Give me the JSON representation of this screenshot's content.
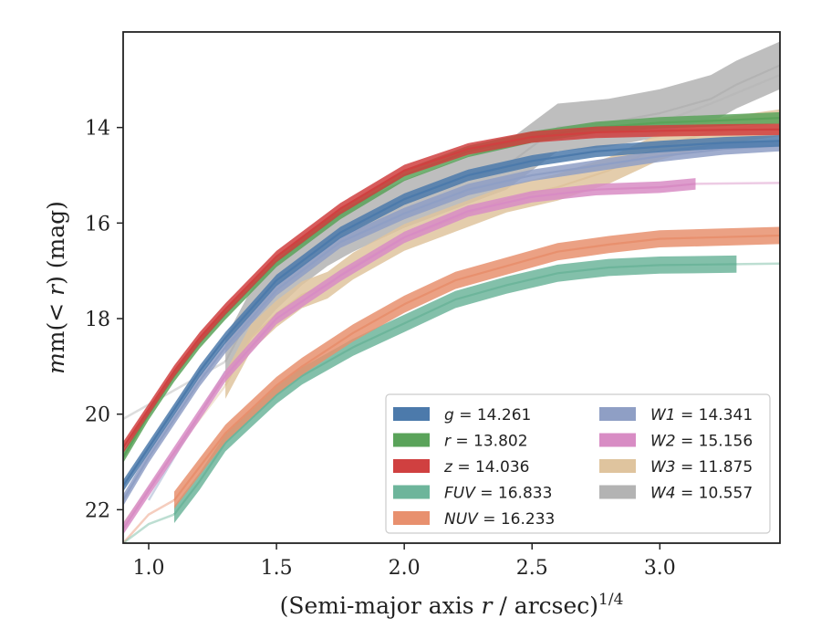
{
  "chart_data": {
    "type": "line",
    "xlabel_main": "(Semi-major axis ",
    "xlabel_var": "r",
    "xlabel_tail": " / arcsec)",
    "xlabel_sup": "1/4",
    "ylabel_pre": "m(< ",
    "ylabel_var": "r",
    "ylabel_post": ") (mag)",
    "xlim": [
      0.9,
      3.47
    ],
    "ylim": [
      22.7,
      12.0
    ],
    "y_inverted": true,
    "grid": false,
    "legend_position": "lower-right",
    "xticks": [
      {
        "value": 1.0,
        "label": "1.0"
      },
      {
        "value": 1.5,
        "label": "1.5"
      },
      {
        "value": 2.0,
        "label": "2.0"
      },
      {
        "value": 2.5,
        "label": "2.5"
      },
      {
        "value": 3.0,
        "label": "3.0"
      }
    ],
    "yticks": [
      {
        "value": 14,
        "label": "14"
      },
      {
        "value": 16,
        "label": "16"
      },
      {
        "value": 18,
        "label": "18"
      },
      {
        "value": 20,
        "label": "20"
      },
      {
        "value": 22,
        "label": "22"
      }
    ],
    "series": [
      {
        "name": "g",
        "value_label": "14.261",
        "color": "#4c7aab",
        "band": 0.12,
        "x": [
          0.9,
          1.0,
          1.1,
          1.2,
          1.3,
          1.5,
          1.75,
          2.0,
          2.25,
          2.5,
          2.75,
          3.0,
          3.25,
          3.47
        ],
        "y": [
          21.5,
          20.7,
          19.9,
          19.1,
          18.4,
          17.2,
          16.2,
          15.5,
          15.0,
          14.7,
          14.5,
          14.4,
          14.32,
          14.28
        ]
      },
      {
        "name": "r",
        "value_label": "13.802",
        "color": "#5aa35a",
        "band": 0.12,
        "x": [
          0.9,
          1.0,
          1.1,
          1.2,
          1.3,
          1.5,
          1.75,
          2.0,
          2.25,
          2.5,
          2.75,
          3.0,
          3.25,
          3.47
        ],
        "y": [
          20.9,
          20.0,
          19.2,
          18.5,
          17.9,
          16.8,
          15.8,
          15.0,
          14.5,
          14.2,
          14.0,
          13.9,
          13.85,
          13.8
        ]
      },
      {
        "name": "z",
        "value_label": "14.036",
        "color": "#d04040",
        "band": 0.12,
        "x": [
          0.9,
          1.0,
          1.1,
          1.2,
          1.3,
          1.5,
          1.75,
          2.0,
          2.25,
          2.5,
          2.75,
          3.0,
          3.25,
          3.47
        ],
        "y": [
          20.7,
          19.9,
          19.1,
          18.4,
          17.8,
          16.7,
          15.7,
          14.9,
          14.45,
          14.2,
          14.1,
          14.07,
          14.05,
          14.04
        ]
      },
      {
        "name": "FUV",
        "value_label": "16.833",
        "color": "#6db59b",
        "band": 0.18,
        "x": [
          1.1,
          1.2,
          1.3,
          1.4,
          1.5,
          1.6,
          1.8,
          2.0,
          2.2,
          2.4,
          2.6,
          2.8,
          3.0,
          3.3
        ],
        "y": [
          22.1,
          21.4,
          20.6,
          20.1,
          19.6,
          19.2,
          18.6,
          18.1,
          17.6,
          17.3,
          17.05,
          16.93,
          16.88,
          16.86
        ]
      },
      {
        "name": "NUV",
        "value_label": "16.233",
        "color": "#e8906e",
        "band": 0.18,
        "x": [
          1.1,
          1.2,
          1.3,
          1.4,
          1.5,
          1.6,
          1.8,
          2.0,
          2.2,
          2.4,
          2.6,
          2.8,
          3.0,
          3.47
        ],
        "y": [
          21.8,
          21.1,
          20.4,
          19.9,
          19.4,
          19.0,
          18.3,
          17.7,
          17.2,
          16.9,
          16.6,
          16.45,
          16.33,
          16.26
        ]
      },
      {
        "name": "W1",
        "value_label": "14.341",
        "color": "#8f9fc5",
        "band": 0.12,
        "x": [
          0.9,
          1.0,
          1.1,
          1.2,
          1.3,
          1.5,
          1.75,
          2.0,
          2.25,
          2.5,
          2.75,
          3.0,
          3.25,
          3.47
        ],
        "y": [
          21.8,
          20.9,
          20.1,
          19.3,
          18.6,
          17.4,
          16.4,
          15.8,
          15.3,
          15.0,
          14.8,
          14.6,
          14.45,
          14.38
        ]
      },
      {
        "name": "W2",
        "value_label": "15.156",
        "color": "#d88cc4",
        "band": 0.12,
        "x": [
          0.9,
          1.0,
          1.1,
          1.2,
          1.3,
          1.5,
          1.75,
          2.0,
          2.25,
          2.5,
          2.75,
          3.0,
          3.14
        ],
        "y": [
          22.4,
          21.6,
          20.8,
          20.0,
          19.2,
          18.0,
          17.1,
          16.3,
          15.75,
          15.45,
          15.3,
          15.25,
          15.18
        ]
      },
      {
        "name": "W3",
        "value_label": "11.875",
        "color": "#dfc49e",
        "band": 0.28,
        "x": [
          1.3,
          1.4,
          1.5,
          1.6,
          1.7,
          1.8,
          2.0,
          2.2,
          2.4,
          2.6,
          2.8,
          3.0,
          3.2,
          3.47
        ],
        "y": [
          19.4,
          18.4,
          17.9,
          17.5,
          17.3,
          16.9,
          16.3,
          15.9,
          15.5,
          15.25,
          14.9,
          14.4,
          14.1,
          13.9
        ]
      },
      {
        "name": "W4",
        "value_label": "10.557",
        "color": "#b3b3b3",
        "band": 0.5,
        "x": [
          1.3,
          1.4,
          1.5,
          1.6,
          1.7,
          1.8,
          2.0,
          2.2,
          2.4,
          2.6,
          2.8,
          3.0,
          3.2,
          3.3,
          3.47
        ],
        "y": [
          18.9,
          17.9,
          17.3,
          16.8,
          16.4,
          16.1,
          15.6,
          15.2,
          14.8,
          14.0,
          13.9,
          13.7,
          13.4,
          13.1,
          12.7
        ]
      }
    ],
    "faint_lines": [
      {
        "series": "W4",
        "x": [
          0.9,
          1.1,
          1.3
        ],
        "y": [
          20.1,
          19.5,
          18.9
        ]
      },
      {
        "series": "NUV",
        "x": [
          0.9,
          1.0,
          1.1
        ],
        "y": [
          22.7,
          22.1,
          21.8
        ]
      },
      {
        "series": "FUV",
        "x": [
          0.9,
          1.0,
          1.1
        ],
        "y": [
          22.7,
          22.3,
          22.1
        ]
      },
      {
        "series": "W3",
        "x": [
          0.9,
          1.1,
          1.3
        ],
        "y": [
          22.3,
          20.8,
          19.4
        ]
      },
      {
        "series": "W1",
        "x": [
          1.0,
          1.2,
          1.3
        ],
        "y": [
          21.8,
          20.0,
          19.1
        ]
      },
      {
        "series": "W2",
        "x": [
          3.14,
          3.3,
          3.47
        ],
        "y": [
          15.18,
          15.17,
          15.16
        ]
      },
      {
        "series": "FUV",
        "x": [
          3.3,
          3.47
        ],
        "y": [
          16.86,
          16.85
        ]
      },
      {
        "series": "W4",
        "x": [
          3.0,
          3.2,
          3.47
        ],
        "y": [
          13.9,
          13.5,
          12.9
        ]
      }
    ]
  }
}
